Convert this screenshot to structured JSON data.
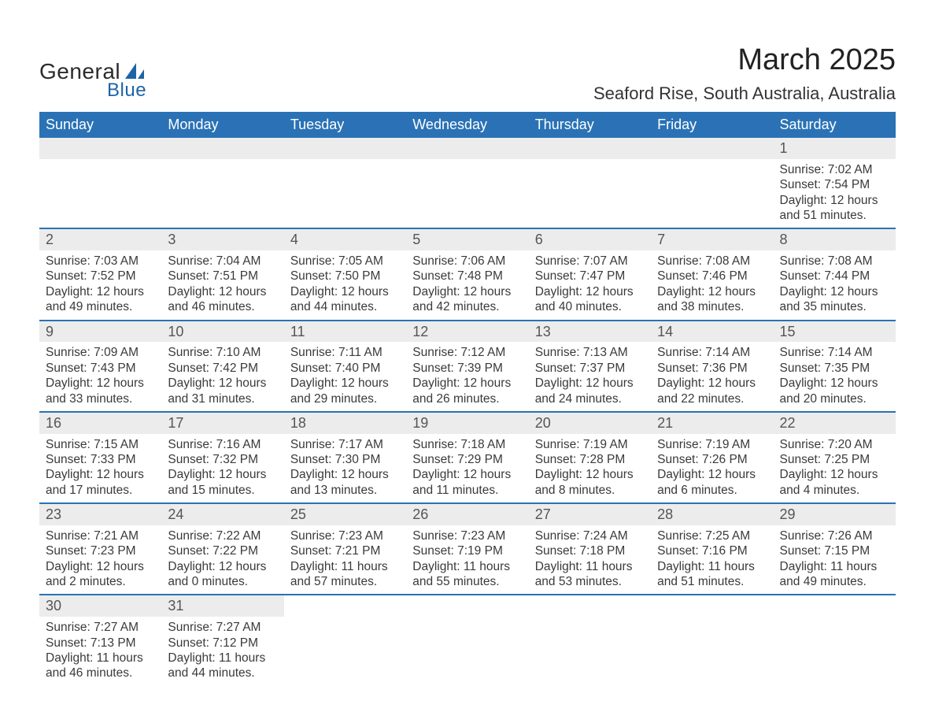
{
  "branding": {
    "logo_word1": "General",
    "logo_word2": "Blue",
    "logo_color_primary": "#2b2b2b",
    "logo_color_accent": "#1f63a6"
  },
  "header": {
    "month_title": "March 2025",
    "location": "Seaford Rise, South Australia, Australia"
  },
  "style": {
    "header_bg": "#2a72b5",
    "header_text": "#ffffff",
    "daynum_bg": "#ececec",
    "daynum_text": "#555555",
    "body_text": "#3a3a3a",
    "row_divider": "#2a72b5",
    "page_bg": "#ffffff",
    "font_family": "Arial",
    "month_title_fontsize": 38,
    "location_fontsize": 22,
    "weekday_fontsize": 18,
    "daynum_fontsize": 18,
    "cell_fontsize": 15.5
  },
  "calendar": {
    "type": "table",
    "columns": [
      "Sunday",
      "Monday",
      "Tuesday",
      "Wednesday",
      "Thursday",
      "Friday",
      "Saturday"
    ],
    "weeks": [
      [
        {
          "day": null
        },
        {
          "day": null
        },
        {
          "day": null
        },
        {
          "day": null
        },
        {
          "day": null
        },
        {
          "day": null
        },
        {
          "day": "1",
          "sunrise": "Sunrise: 7:02 AM",
          "sunset": "Sunset: 7:54 PM",
          "daylight": "Daylight: 12 hours and 51 minutes."
        }
      ],
      [
        {
          "day": "2",
          "sunrise": "Sunrise: 7:03 AM",
          "sunset": "Sunset: 7:52 PM",
          "daylight": "Daylight: 12 hours and 49 minutes."
        },
        {
          "day": "3",
          "sunrise": "Sunrise: 7:04 AM",
          "sunset": "Sunset: 7:51 PM",
          "daylight": "Daylight: 12 hours and 46 minutes."
        },
        {
          "day": "4",
          "sunrise": "Sunrise: 7:05 AM",
          "sunset": "Sunset: 7:50 PM",
          "daylight": "Daylight: 12 hours and 44 minutes."
        },
        {
          "day": "5",
          "sunrise": "Sunrise: 7:06 AM",
          "sunset": "Sunset: 7:48 PM",
          "daylight": "Daylight: 12 hours and 42 minutes."
        },
        {
          "day": "6",
          "sunrise": "Sunrise: 7:07 AM",
          "sunset": "Sunset: 7:47 PM",
          "daylight": "Daylight: 12 hours and 40 minutes."
        },
        {
          "day": "7",
          "sunrise": "Sunrise: 7:08 AM",
          "sunset": "Sunset: 7:46 PM",
          "daylight": "Daylight: 12 hours and 38 minutes."
        },
        {
          "day": "8",
          "sunrise": "Sunrise: 7:08 AM",
          "sunset": "Sunset: 7:44 PM",
          "daylight": "Daylight: 12 hours and 35 minutes."
        }
      ],
      [
        {
          "day": "9",
          "sunrise": "Sunrise: 7:09 AM",
          "sunset": "Sunset: 7:43 PM",
          "daylight": "Daylight: 12 hours and 33 minutes."
        },
        {
          "day": "10",
          "sunrise": "Sunrise: 7:10 AM",
          "sunset": "Sunset: 7:42 PM",
          "daylight": "Daylight: 12 hours and 31 minutes."
        },
        {
          "day": "11",
          "sunrise": "Sunrise: 7:11 AM",
          "sunset": "Sunset: 7:40 PM",
          "daylight": "Daylight: 12 hours and 29 minutes."
        },
        {
          "day": "12",
          "sunrise": "Sunrise: 7:12 AM",
          "sunset": "Sunset: 7:39 PM",
          "daylight": "Daylight: 12 hours and 26 minutes."
        },
        {
          "day": "13",
          "sunrise": "Sunrise: 7:13 AM",
          "sunset": "Sunset: 7:37 PM",
          "daylight": "Daylight: 12 hours and 24 minutes."
        },
        {
          "day": "14",
          "sunrise": "Sunrise: 7:14 AM",
          "sunset": "Sunset: 7:36 PM",
          "daylight": "Daylight: 12 hours and 22 minutes."
        },
        {
          "day": "15",
          "sunrise": "Sunrise: 7:14 AM",
          "sunset": "Sunset: 7:35 PM",
          "daylight": "Daylight: 12 hours and 20 minutes."
        }
      ],
      [
        {
          "day": "16",
          "sunrise": "Sunrise: 7:15 AM",
          "sunset": "Sunset: 7:33 PM",
          "daylight": "Daylight: 12 hours and 17 minutes."
        },
        {
          "day": "17",
          "sunrise": "Sunrise: 7:16 AM",
          "sunset": "Sunset: 7:32 PM",
          "daylight": "Daylight: 12 hours and 15 minutes."
        },
        {
          "day": "18",
          "sunrise": "Sunrise: 7:17 AM",
          "sunset": "Sunset: 7:30 PM",
          "daylight": "Daylight: 12 hours and 13 minutes."
        },
        {
          "day": "19",
          "sunrise": "Sunrise: 7:18 AM",
          "sunset": "Sunset: 7:29 PM",
          "daylight": "Daylight: 12 hours and 11 minutes."
        },
        {
          "day": "20",
          "sunrise": "Sunrise: 7:19 AM",
          "sunset": "Sunset: 7:28 PM",
          "daylight": "Daylight: 12 hours and 8 minutes."
        },
        {
          "day": "21",
          "sunrise": "Sunrise: 7:19 AM",
          "sunset": "Sunset: 7:26 PM",
          "daylight": "Daylight: 12 hours and 6 minutes."
        },
        {
          "day": "22",
          "sunrise": "Sunrise: 7:20 AM",
          "sunset": "Sunset: 7:25 PM",
          "daylight": "Daylight: 12 hours and 4 minutes."
        }
      ],
      [
        {
          "day": "23",
          "sunrise": "Sunrise: 7:21 AM",
          "sunset": "Sunset: 7:23 PM",
          "daylight": "Daylight: 12 hours and 2 minutes."
        },
        {
          "day": "24",
          "sunrise": "Sunrise: 7:22 AM",
          "sunset": "Sunset: 7:22 PM",
          "daylight": "Daylight: 12 hours and 0 minutes."
        },
        {
          "day": "25",
          "sunrise": "Sunrise: 7:23 AM",
          "sunset": "Sunset: 7:21 PM",
          "daylight": "Daylight: 11 hours and 57 minutes."
        },
        {
          "day": "26",
          "sunrise": "Sunrise: 7:23 AM",
          "sunset": "Sunset: 7:19 PM",
          "daylight": "Daylight: 11 hours and 55 minutes."
        },
        {
          "day": "27",
          "sunrise": "Sunrise: 7:24 AM",
          "sunset": "Sunset: 7:18 PM",
          "daylight": "Daylight: 11 hours and 53 minutes."
        },
        {
          "day": "28",
          "sunrise": "Sunrise: 7:25 AM",
          "sunset": "Sunset: 7:16 PM",
          "daylight": "Daylight: 11 hours and 51 minutes."
        },
        {
          "day": "29",
          "sunrise": "Sunrise: 7:26 AM",
          "sunset": "Sunset: 7:15 PM",
          "daylight": "Daylight: 11 hours and 49 minutes."
        }
      ],
      [
        {
          "day": "30",
          "sunrise": "Sunrise: 7:27 AM",
          "sunset": "Sunset: 7:13 PM",
          "daylight": "Daylight: 11 hours and 46 minutes."
        },
        {
          "day": "31",
          "sunrise": "Sunrise: 7:27 AM",
          "sunset": "Sunset: 7:12 PM",
          "daylight": "Daylight: 11 hours and 44 minutes."
        },
        {
          "day": null
        },
        {
          "day": null
        },
        {
          "day": null
        },
        {
          "day": null
        },
        {
          "day": null
        }
      ]
    ]
  }
}
